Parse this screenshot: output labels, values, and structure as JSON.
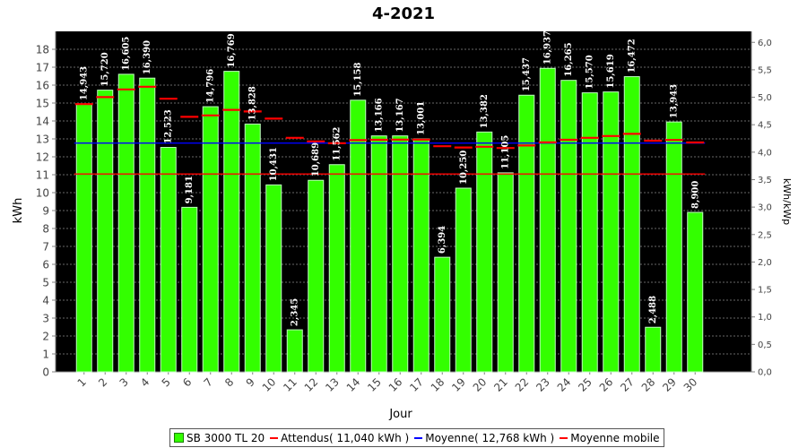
{
  "chart_data": {
    "type": "bar",
    "title": "4-2021",
    "xlabel": "Jour",
    "ylabel": "kWh",
    "y2label": "kWh/kWp",
    "ylim": [
      0,
      19
    ],
    "y2lim": [
      0,
      6.2
    ],
    "yticks": [
      0,
      1,
      2,
      3,
      4,
      5,
      6,
      7,
      8,
      9,
      10,
      11,
      12,
      13,
      14,
      15,
      16,
      17,
      18
    ],
    "y2ticks": [
      "0,0",
      "0,5",
      "1,0",
      "1,5",
      "2,0",
      "2,5",
      "3,0",
      "3,5",
      "4,0",
      "4,5",
      "5,0",
      "5,5",
      "6,0"
    ],
    "categories": [
      "1",
      "2",
      "3",
      "4",
      "5",
      "6",
      "7",
      "8",
      "9",
      "10",
      "11",
      "12",
      "13",
      "14",
      "15",
      "16",
      "17",
      "18",
      "19",
      "20",
      "21",
      "22",
      "23",
      "24",
      "25",
      "26",
      "27",
      "28",
      "29",
      "30"
    ],
    "series": [
      {
        "name": "SB 3000 TL 20",
        "values": [
          14.943,
          15.72,
          16.605,
          16.39,
          12.523,
          9.181,
          14.796,
          16.769,
          13.828,
          10.431,
          2.345,
          10.689,
          11.562,
          15.158,
          13.166,
          13.167,
          13.001,
          6.394,
          10.25,
          13.382,
          11.105,
          15.437,
          16.937,
          16.265,
          15.57,
          15.619,
          16.472,
          2.488,
          13.943,
          8.9
        ],
        "labels": [
          "14,943",
          "15,720",
          "16,605",
          "16,390",
          "12,523",
          "9,181",
          "14,796",
          "16,769",
          "13,828",
          "10,431",
          "2,345",
          "10,689",
          "11,562",
          "15,158",
          "13,166",
          "13,167",
          "13,001",
          "6,394",
          "10,250",
          "13,382",
          "11,105",
          "15,437",
          "16,937",
          "16,265",
          "15,570",
          "15,619",
          "16,472",
          "2,488",
          "13,943",
          "8,900"
        ],
        "color": "#33ff00"
      },
      {
        "name": "Moyenne mobile",
        "values": [
          14.94,
          15.33,
          15.76,
          15.91,
          15.24,
          14.23,
          14.31,
          14.62,
          14.53,
          14.13,
          13.06,
          12.86,
          12.76,
          12.93,
          12.95,
          12.96,
          12.96,
          12.59,
          12.52,
          12.56,
          12.49,
          12.63,
          12.81,
          12.95,
          13.06,
          13.16,
          13.28,
          12.9,
          12.94,
          12.8
        ],
        "color": "#ff0000"
      }
    ],
    "reference_lines": [
      {
        "name": "Attendus( 11,040 kWh )",
        "value": 11.04,
        "color": "#ff0000"
      },
      {
        "name": "Moyenne( 12,768 kWh )",
        "value": 12.768,
        "color": "#0000ff"
      }
    ],
    "grid": true,
    "legend_position": "bottom",
    "plot_background": "#000000"
  }
}
